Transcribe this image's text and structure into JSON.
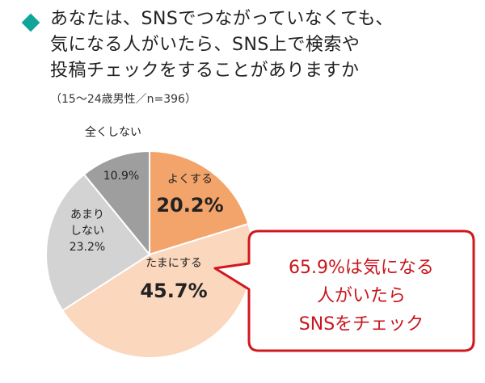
{
  "header": {
    "title_lines": [
      "あなたは、SNSでつながっていなくても、",
      "気になる人がいたら、SNS上で検索や",
      "投稿チェックをすることがありますか"
    ],
    "subtitle": "（15〜24歳男性／n=396）"
  },
  "chart_data": {
    "type": "pie",
    "title": "あなたは、SNSでつながっていなくても、気になる人がいたら、SNS上で検索や投稿チェックをすることがありますか",
    "subtitle": "（15〜24歳男性／n=396）",
    "slices": [
      {
        "label": "よくする",
        "value": 20.2,
        "value_label": "20.2%",
        "color": "#f3a46a"
      },
      {
        "label": "たまにする",
        "value": 45.7,
        "value_label": "45.7%",
        "color": "#fad7bd"
      },
      {
        "label": "あまり\nしない",
        "value": 23.2,
        "value_label": "23.2%",
        "color": "#d3d3d3"
      },
      {
        "label": "全くしない",
        "value": 10.9,
        "value_label": "10.9%",
        "color": "#9e9e9e"
      }
    ],
    "start_angle": "12 o'clock",
    "direction": "clockwise",
    "value_label_color": "#e07a10"
  },
  "callout": {
    "lines": [
      "65.9%は気になる",
      "人がいたら",
      "SNSをチェック"
    ],
    "border_color": "#d0181f",
    "text_color": "#c8161d"
  }
}
